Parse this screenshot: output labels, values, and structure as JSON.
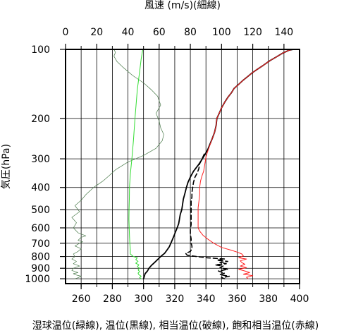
{
  "chart_data": {
    "type": "line",
    "title": "",
    "top_axis_label": "風速 (m/s)(細線)",
    "bottom_axis_label": "湿球温位(緑線), 温位(黒線), 相当温位(破線), 飽和相当温位(赤線)",
    "y_axis_label": "気圧(hPa)",
    "y_scale": "log",
    "y_reversed": true,
    "ylim": [
      1050,
      100
    ],
    "y_ticks": [
      100,
      200,
      300,
      400,
      500,
      600,
      700,
      800,
      900,
      1000
    ],
    "x_bottom_lim": [
      250,
      400
    ],
    "x_bottom_ticks": [
      260,
      280,
      300,
      320,
      340,
      360,
      380,
      400
    ],
    "x_bottom_minor_step": 10,
    "x_top_lim": [
      0,
      150
    ],
    "x_top_ticks": [
      0,
      20,
      40,
      60,
      80,
      100,
      120,
      140
    ],
    "grid": true,
    "series": [
      {
        "key": "wind",
        "axis": "top",
        "color": "#4a7a4a",
        "style": "solid",
        "width": 0.7,
        "points": [
          [
            6,
            1000
          ],
          [
            8,
            990
          ],
          [
            10,
            975
          ],
          [
            6,
            960
          ],
          [
            5,
            950
          ],
          [
            8,
            940
          ],
          [
            4,
            920
          ],
          [
            5,
            900
          ],
          [
            9,
            880
          ],
          [
            5,
            860
          ],
          [
            7,
            840
          ],
          [
            4,
            820
          ],
          [
            6,
            800
          ],
          [
            5,
            780
          ],
          [
            8,
            760
          ],
          [
            10,
            740
          ],
          [
            6,
            720
          ],
          [
            9,
            700
          ],
          [
            11,
            690
          ],
          [
            8,
            680
          ],
          [
            10,
            660
          ],
          [
            13,
            650
          ],
          [
            8,
            630
          ],
          [
            5,
            600
          ],
          [
            7,
            570
          ],
          [
            4,
            540
          ],
          [
            9,
            510
          ],
          [
            6,
            480
          ],
          [
            10,
            455
          ],
          [
            13,
            430
          ],
          [
            18,
            400
          ],
          [
            24,
            375
          ],
          [
            28,
            355
          ],
          [
            32,
            335
          ],
          [
            40,
            310
          ],
          [
            50,
            290
          ],
          [
            58,
            270
          ],
          [
            62,
            250
          ],
          [
            63,
            235
          ],
          [
            61,
            220
          ],
          [
            60,
            205
          ],
          [
            58,
            190
          ],
          [
            61,
            175
          ],
          [
            59,
            160
          ],
          [
            55,
            150
          ],
          [
            50,
            140
          ],
          [
            43,
            130
          ],
          [
            37,
            120
          ],
          [
            33,
            113
          ],
          [
            31,
            107
          ],
          [
            32,
            103
          ],
          [
            31,
            100
          ]
        ]
      },
      {
        "key": "theta_w",
        "axis": "bottom",
        "color": "#33dd33",
        "style": "solid",
        "width": 1.0,
        "points": [
          [
            298.5,
            1000
          ],
          [
            297.5,
            990
          ],
          [
            298.5,
            975
          ],
          [
            297,
            960
          ],
          [
            296.5,
            945
          ],
          [
            297.5,
            930
          ],
          [
            296.5,
            915
          ],
          [
            297.5,
            900
          ],
          [
            296,
            885
          ],
          [
            297,
            870
          ],
          [
            295,
            855
          ],
          [
            296.5,
            840
          ],
          [
            295,
            825
          ],
          [
            296,
            810
          ],
          [
            293.5,
            800
          ],
          [
            292.5,
            790
          ],
          [
            291.5,
            780
          ],
          [
            291.5,
            750
          ],
          [
            291.2,
            700
          ],
          [
            291,
            650
          ],
          [
            290.8,
            600
          ],
          [
            290.6,
            550
          ],
          [
            290.7,
            500
          ],
          [
            290.9,
            450
          ],
          [
            291,
            400
          ],
          [
            291.5,
            350
          ],
          [
            292.5,
            300
          ],
          [
            293.5,
            250
          ],
          [
            294.5,
            200
          ],
          [
            296,
            150
          ],
          [
            297.5,
            125
          ],
          [
            298.5,
            110
          ],
          [
            299.5,
            100
          ]
        ]
      },
      {
        "key": "theta",
        "axis": "bottom",
        "color": "#000000",
        "style": "solid",
        "width": 1.8,
        "points": [
          [
            300,
            1000
          ],
          [
            300.5,
            975
          ],
          [
            301,
            950
          ],
          [
            302.5,
            925
          ],
          [
            303.5,
            900
          ],
          [
            305,
            875
          ],
          [
            307,
            850
          ],
          [
            309,
            825
          ],
          [
            311,
            800
          ],
          [
            313.5,
            775
          ],
          [
            315,
            750
          ],
          [
            316.5,
            725
          ],
          [
            317.5,
            700
          ],
          [
            318.5,
            675
          ],
          [
            319.5,
            650
          ],
          [
            320.5,
            625
          ],
          [
            321.5,
            600
          ],
          [
            322.5,
            575
          ],
          [
            323,
            550
          ],
          [
            323.5,
            525
          ],
          [
            324.5,
            500
          ],
          [
            325,
            475
          ],
          [
            325.5,
            450
          ],
          [
            326.5,
            425
          ],
          [
            327.5,
            400
          ],
          [
            328.5,
            380
          ],
          [
            330,
            360
          ],
          [
            332,
            340
          ],
          [
            335,
            320
          ],
          [
            337,
            305
          ],
          [
            339,
            290
          ],
          [
            341,
            275
          ],
          [
            342.5,
            260
          ],
          [
            344,
            245
          ],
          [
            345.5,
            230
          ],
          [
            346.5,
            215
          ],
          [
            347,
            200
          ],
          [
            348.5,
            190
          ],
          [
            350,
            180
          ],
          [
            352,
            170
          ],
          [
            354,
            162
          ],
          [
            356.5,
            154
          ],
          [
            358,
            148
          ],
          [
            361,
            142
          ],
          [
            364,
            136
          ],
          [
            367,
            131
          ],
          [
            370,
            126
          ],
          [
            373,
            122
          ],
          [
            377,
            117
          ],
          [
            381,
            112
          ],
          [
            385,
            108
          ],
          [
            389,
            104
          ],
          [
            393,
            101
          ],
          [
            396,
            100
          ]
        ]
      },
      {
        "key": "theta_e",
        "axis": "bottom",
        "color": "#000000",
        "style": "dashed",
        "width": 1.6,
        "points": [
          [
            352,
            1000
          ],
          [
            350,
            990
          ],
          [
            355,
            975
          ],
          [
            349,
            960
          ],
          [
            352,
            945
          ],
          [
            350,
            935
          ],
          [
            348,
            925
          ],
          [
            354,
            910
          ],
          [
            349,
            895
          ],
          [
            351,
            880
          ],
          [
            346,
            870
          ],
          [
            353,
            860
          ],
          [
            349,
            850
          ],
          [
            354,
            840
          ],
          [
            347,
            830
          ],
          [
            352,
            820
          ],
          [
            341,
            810
          ],
          [
            334,
            800
          ],
          [
            328,
            790
          ],
          [
            327,
            775
          ],
          [
            330,
            760
          ],
          [
            331,
            740
          ],
          [
            331,
            720
          ],
          [
            330.5,
            700
          ],
          [
            330.5,
            670
          ],
          [
            330,
            640
          ],
          [
            330,
            610
          ],
          [
            330.5,
            580
          ],
          [
            330.5,
            550
          ],
          [
            330.5,
            520
          ],
          [
            330.5,
            500
          ],
          [
            330.5,
            480
          ],
          [
            330.5,
            460
          ],
          [
            331,
            440
          ],
          [
            331,
            420
          ],
          [
            331.5,
            400
          ],
          [
            332,
            380
          ],
          [
            333,
            360
          ],
          [
            334.5,
            345
          ],
          [
            335.5,
            330
          ],
          [
            336,
            315
          ],
          [
            337,
            305
          ],
          [
            338,
            295
          ],
          [
            339,
            285
          ]
        ]
      },
      {
        "key": "theta_es",
        "axis": "bottom",
        "color": "#ff2222",
        "style": "solid",
        "width": 1.0,
        "points": [
          [
            367,
            1000
          ],
          [
            366,
            985
          ],
          [
            370,
            970
          ],
          [
            364,
            955
          ],
          [
            368,
            940
          ],
          [
            365,
            925
          ],
          [
            361,
            910
          ],
          [
            366,
            895
          ],
          [
            362,
            880
          ],
          [
            365,
            865
          ],
          [
            363,
            850
          ],
          [
            362,
            835
          ],
          [
            366,
            820
          ],
          [
            361,
            810
          ],
          [
            364,
            795
          ],
          [
            363,
            780
          ],
          [
            360,
            765
          ],
          [
            356,
            750
          ],
          [
            350,
            730
          ],
          [
            345,
            700
          ],
          [
            341,
            670
          ],
          [
            338,
            645
          ],
          [
            336,
            620
          ],
          [
            335,
            600
          ],
          [
            335,
            570
          ],
          [
            335,
            540
          ],
          [
            335,
            510
          ],
          [
            335,
            490
          ],
          [
            335.5,
            460
          ],
          [
            336,
            430
          ],
          [
            336,
            400
          ],
          [
            336.5,
            375
          ],
          [
            337.5,
            355
          ],
          [
            338.5,
            340
          ],
          [
            339,
            325
          ],
          [
            339.5,
            310
          ],
          [
            340,
            295
          ],
          [
            341,
            280
          ],
          [
            342.5,
            262
          ],
          [
            344,
            245
          ],
          [
            345.5,
            230
          ],
          [
            346.5,
            215
          ],
          [
            347,
            200
          ],
          [
            348.5,
            190
          ],
          [
            350,
            180
          ],
          [
            352,
            170
          ],
          [
            354,
            162
          ],
          [
            356.5,
            154
          ],
          [
            358,
            148
          ],
          [
            361,
            142
          ],
          [
            364,
            136
          ],
          [
            367,
            131
          ],
          [
            370,
            126
          ],
          [
            373,
            122
          ],
          [
            377,
            117
          ],
          [
            381,
            112
          ],
          [
            385,
            108
          ],
          [
            389,
            104
          ],
          [
            393,
            101
          ],
          [
            396,
            100
          ]
        ]
      }
    ]
  }
}
